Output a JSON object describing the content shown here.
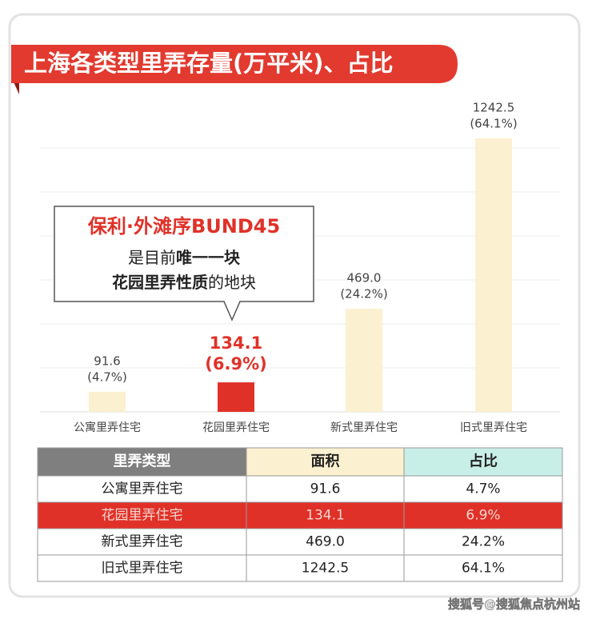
{
  "chart_data": {
    "type": "bar",
    "title": "上海各类型里弄存量(万平米)、占比",
    "categories": [
      "公寓里弄住宅",
      "花园里弄住宅",
      "新式里弄住宅",
      "旧式里弄住宅"
    ],
    "values": [
      91.6,
      134.1,
      469.0,
      1242.5
    ],
    "value_labels": [
      "91.6",
      "134.1",
      "469.0",
      "1242.5"
    ],
    "shares": [
      4.7,
      6.9,
      24.2,
      64.1
    ],
    "share_labels": [
      "(4.7%)",
      "(6.9%)",
      "(24.2%)",
      "(64.1%)"
    ],
    "colors": [
      "#fbf0cf",
      "#e03128",
      "#fbf0cf",
      "#fbf0cf"
    ],
    "grid": true,
    "annotation": {
      "title": "保利·外滩序BUND45",
      "line1": [
        "是目前",
        "唯一一块"
      ],
      "line2": [
        "花园里弄性质",
        "的地块"
      ]
    }
  },
  "table": {
    "header": [
      "里弄类型",
      "面积",
      "占比"
    ],
    "rows": [
      [
        "公寓里弄住宅",
        "91.6",
        "4.7%"
      ],
      [
        "花园里弄住宅",
        "134.1",
        "6.9%"
      ],
      [
        "新式里弄住宅",
        "469.0",
        "24.2%"
      ],
      [
        "旧式里弄住宅",
        "1242.5",
        "64.1%"
      ]
    ]
  },
  "watermark": "搜狐号@搜狐焦点杭州站"
}
